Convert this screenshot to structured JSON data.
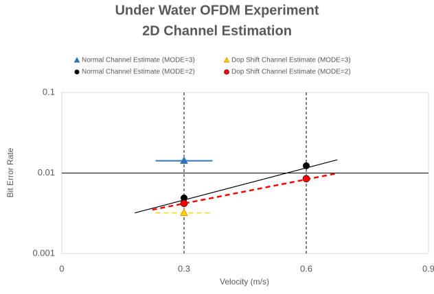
{
  "chart_data": {
    "type": "scatter",
    "title": [
      "Under Water OFDM Experiment",
      "2D Channel Estimation"
    ],
    "xlabel": "Velocity (m/s)",
    "ylabel": "Bit Error Rate",
    "xlim": [
      0,
      0.9
    ],
    "ylim": [
      0.001,
      0.1
    ],
    "xticks": [
      0,
      0.3,
      0.6,
      0.9
    ],
    "yticks": [
      0.001,
      0.01,
      0.1
    ],
    "log_y": true,
    "grid": true,
    "legend": "top",
    "series": [
      {
        "name": "Normal Channel Estimate (MODE=3)",
        "color": "#2e75b6",
        "marker": "triangle",
        "x": [
          0.3
        ],
        "values": [
          0.0142
        ],
        "xerr": [
          0.07
        ],
        "xerr_dashed": false
      },
      {
        "name": "Dop Shift Channel Estimate (MODE=3)",
        "color": "#ffd700",
        "marker": "triangle",
        "x": [
          0.3
        ],
        "values": [
          0.0032
        ],
        "xerr": [
          0.07
        ],
        "xerr_dashed": true
      },
      {
        "name": "Normal Channel Estimate (MODE=2)",
        "color": "#000000",
        "marker": "circle",
        "x": [
          0.3,
          0.6
        ],
        "values": [
          0.0049,
          0.0123
        ],
        "trendline": {
          "x": [
            0.179,
            0.676
          ],
          "values": [
            0.0032,
            0.0146
          ],
          "dashed": false
        }
      },
      {
        "name": "Dop Shift Channel Estimate (MODE=2)",
        "color": "#ff0000",
        "marker": "circle",
        "x": [
          0.3,
          0.6
        ],
        "values": [
          0.0042,
          0.0085
        ],
        "trendline": {
          "x": [
            0.222,
            0.679
          ],
          "values": [
            0.0035,
            0.01
          ],
          "dashed": true
        }
      }
    ]
  }
}
